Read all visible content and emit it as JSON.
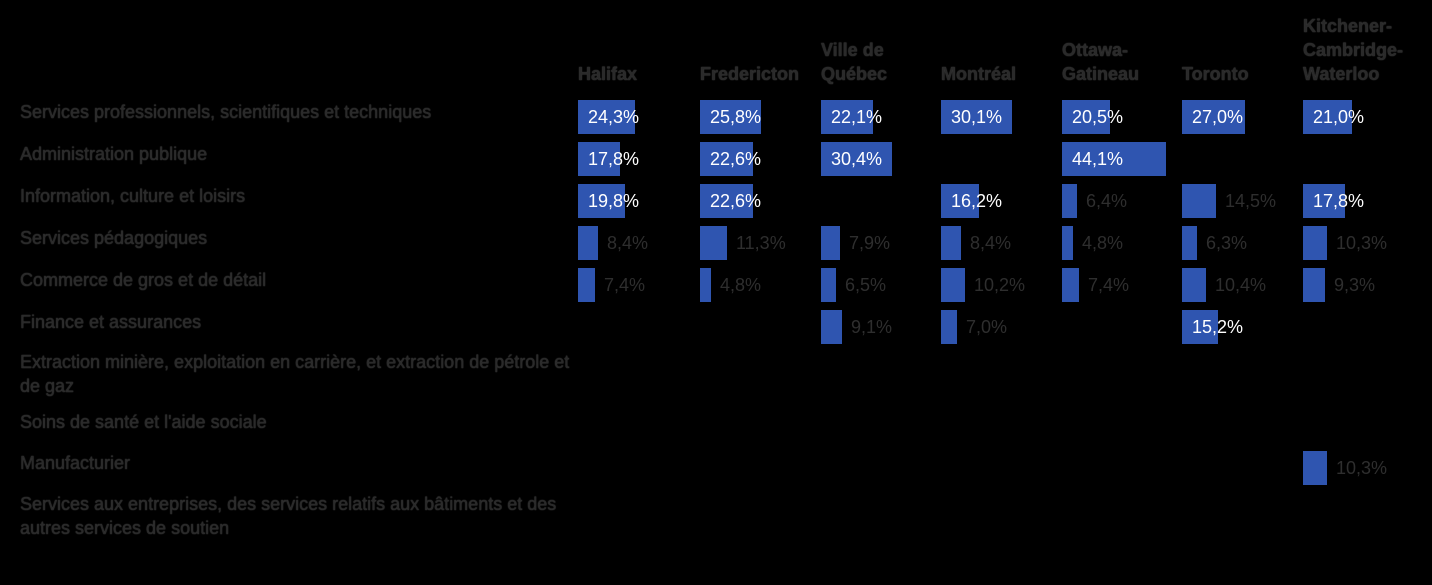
{
  "colors": {
    "bar": "#2f55b0",
    "background": "#000000"
  },
  "chart_data": {
    "type": "table",
    "columns": [
      "Halifax",
      "Fredericton",
      "Ville de Québec",
      "Montréal",
      "Ottawa-Gatineau",
      "Toronto",
      "Kitchener-Cambridge-Waterloo"
    ],
    "column_labels": [
      [
        "Halifax"
      ],
      [
        "Fredericton"
      ],
      [
        "Ville de",
        "Québec"
      ],
      [
        "Montréal"
      ],
      [
        "Ottawa-",
        "Gatineau"
      ],
      [
        "Toronto"
      ],
      [
        "Kitchener-",
        "Cambridge-",
        "Waterloo"
      ]
    ],
    "rows": [
      {
        "label": "Services professionnels, scientifiques et techniques",
        "values": [
          24.3,
          25.8,
          22.1,
          30.1,
          20.5,
          27.0,
          21.0
        ],
        "value_labels": [
          "24,3%",
          "25,8%",
          "22,1%",
          "30,1%",
          "20,5%",
          "27,0%",
          "21,0%"
        ]
      },
      {
        "label": "Administration publique",
        "values": [
          17.8,
          22.6,
          30.4,
          null,
          44.1,
          null,
          null
        ],
        "value_labels": [
          "17,8%",
          "22,6%",
          "30,4%",
          "",
          "44,1%",
          "",
          ""
        ]
      },
      {
        "label": "Information, culture et loisirs",
        "values": [
          19.8,
          22.6,
          null,
          16.2,
          6.4,
          14.5,
          17.8
        ],
        "value_labels": [
          "19,8%",
          "22,6%",
          "",
          "16,2%",
          "6,4%",
          "14,5%",
          "17,8%"
        ]
      },
      {
        "label": "Services pédagogiques",
        "values": [
          8.4,
          11.3,
          7.9,
          8.4,
          4.8,
          6.3,
          10.3
        ],
        "value_labels": [
          "8,4%",
          "11,3%",
          "7,9%",
          "8,4%",
          "4,8%",
          "6,3%",
          "10,3%"
        ]
      },
      {
        "label": "Commerce de gros et de détail",
        "values": [
          7.4,
          4.8,
          6.5,
          10.2,
          7.4,
          10.4,
          9.3
        ],
        "value_labels": [
          "7,4%",
          "4,8%",
          "6,5%",
          "10,2%",
          "7,4%",
          "10,4%",
          "9,3%"
        ]
      },
      {
        "label": "Finance et assurances",
        "values": [
          null,
          null,
          9.1,
          7.0,
          null,
          15.2,
          null
        ],
        "value_labels": [
          "",
          "",
          "9,1%",
          "7,0%",
          "",
          "15,2%",
          ""
        ]
      },
      {
        "label": "Extraction minière, exploitation en carrière, et extraction de pétrole et de gaz",
        "values": [
          null,
          null,
          null,
          null,
          null,
          null,
          null
        ],
        "value_labels": [
          "",
          "",
          "",
          "",
          "",
          "",
          ""
        ]
      },
      {
        "label": "Soins de santé et l'aide sociale",
        "values": [
          null,
          null,
          null,
          null,
          null,
          null,
          null
        ],
        "value_labels": [
          "",
          "",
          "",
          "",
          "",
          "",
          ""
        ]
      },
      {
        "label": "Manufacturier",
        "values": [
          null,
          null,
          null,
          null,
          null,
          null,
          10.3
        ],
        "value_labels": [
          "",
          "",
          "",
          "",
          "",
          "",
          "10,3%"
        ]
      },
      {
        "label": "Services aux entreprises, des services relatifs aux bâtiments et des autres services de soutien",
        "values": [
          null,
          null,
          null,
          null,
          null,
          null,
          null
        ],
        "value_labels": [
          "",
          "",
          "",
          "",
          "",
          "",
          ""
        ]
      }
    ]
  }
}
